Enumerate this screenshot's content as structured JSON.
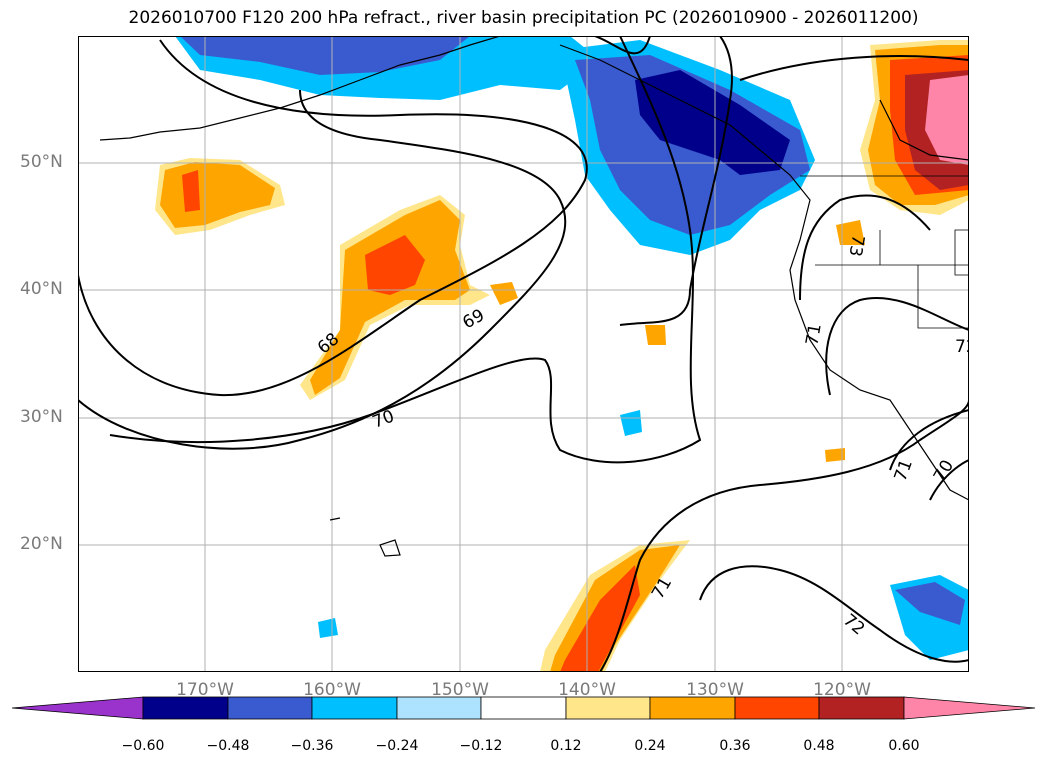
{
  "title": "2026010700 F120 200 hPa refract., river basin precipitation PC (2026010900 - 2026011200)",
  "lat_labels": [
    "50°N",
    "40°N",
    "30°N",
    "20°N"
  ],
  "lon_labels": [
    "170°W",
    "160°W",
    "150°W",
    "140°W",
    "130°W",
    "120°W"
  ],
  "colorbar": {
    "ticks": [
      "−0.60",
      "−0.48",
      "−0.36",
      "−0.24",
      "−0.12",
      "0.12",
      "0.24",
      "0.36",
      "0.48",
      "0.60"
    ],
    "colors": [
      "#9933cc",
      "#00008b",
      "#3a5bd0",
      "#00bfff",
      "#aee3ff",
      "#ffffff",
      "#ffe68a",
      "#ffa500",
      "#ff4500",
      "#b22222",
      "#ff85a8"
    ]
  },
  "contour_labels": [
    "68",
    "69",
    "70",
    "71",
    "71",
    "72",
    "72",
    "73",
    "71",
    "70"
  ]
}
